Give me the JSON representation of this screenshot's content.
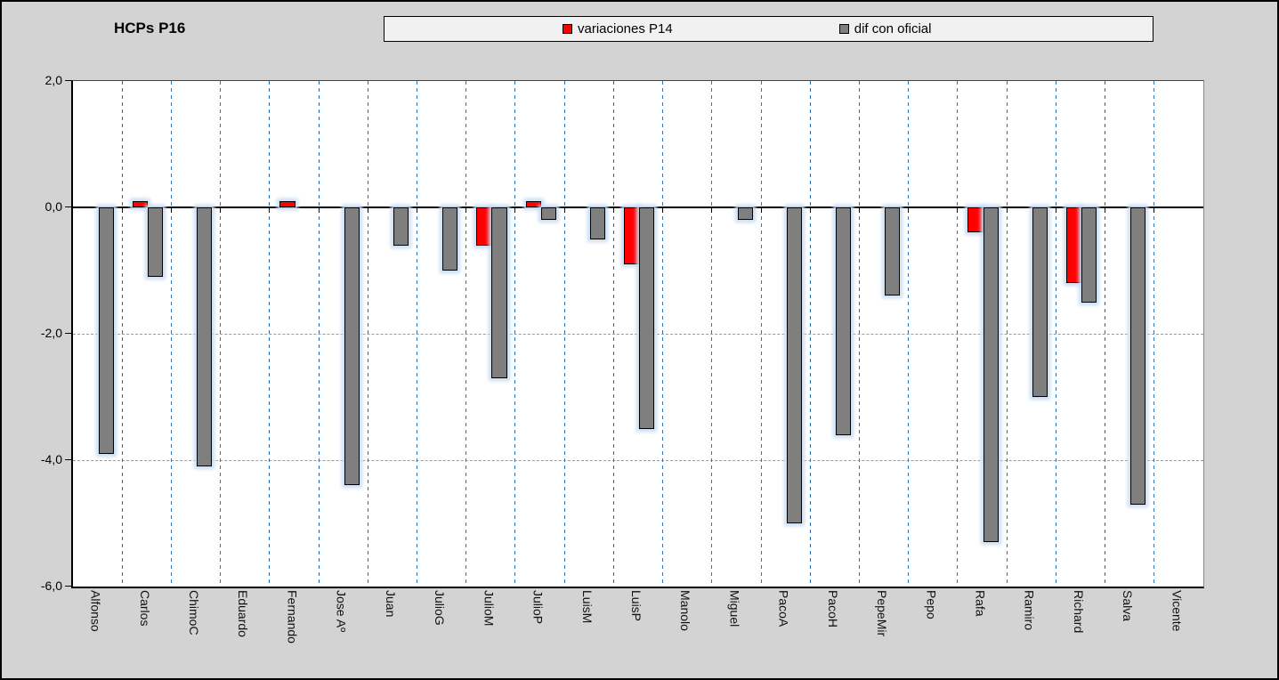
{
  "title": "HCPs P16",
  "legend": {
    "entries": [
      {
        "label": "variaciones P14",
        "color": "#fe0000"
      },
      {
        "label": "dif con oficial",
        "color": "#7f7f7f"
      }
    ]
  },
  "y_axis": {
    "tick_labels": [
      "2,0",
      "0,0",
      "-2,0",
      "-4,0",
      "-6,0"
    ],
    "tick_values": [
      2,
      0,
      -2,
      -4,
      -6
    ]
  },
  "colors": {
    "background": "#d3d3d3",
    "plot_background": "#ffffff",
    "series_red": "#fe0000",
    "series_gray": "#7f7f7f",
    "bar_border": "#000000",
    "bar_glow": "#c9dcf2",
    "category_separator_blue": "#2e75b6",
    "gridline_gray": "#9a9a9a",
    "legend_background": "#f1f1f1"
  },
  "chart_data": {
    "type": "bar",
    "title": "HCPs P16",
    "categories": [
      "Alfonso",
      "Carlos",
      "ChimoC",
      "Eduardo",
      "Fernando",
      "Jose Aº",
      "Juan",
      "JulioG",
      "JulioM",
      "JulioP",
      "LuisM",
      "LuisP",
      "Manolo",
      "Miguel",
      "PacoA",
      "PacoH",
      "PepeMir",
      "Pepo",
      "Rafa",
      "Ramiro",
      "Richard",
      "Salva",
      "Vicente"
    ],
    "series": [
      {
        "name": "variaciones P14",
        "color": "#fe0000",
        "values": [
          null,
          0.1,
          null,
          null,
          0.1,
          null,
          null,
          null,
          -0.6,
          0.1,
          null,
          -0.9,
          null,
          null,
          null,
          null,
          null,
          null,
          -0.4,
          null,
          -1.2,
          null,
          null
        ]
      },
      {
        "name": "dif con oficial",
        "color": "#7f7f7f",
        "values": [
          -3.9,
          -1.1,
          -4.1,
          null,
          null,
          -4.4,
          -0.6,
          -1.0,
          -2.7,
          -0.2,
          -0.5,
          -3.5,
          null,
          -0.2,
          -5.0,
          -3.6,
          -1.4,
          null,
          -5.3,
          -3.0,
          -1.5,
          -4.7,
          null
        ]
      }
    ],
    "ylim": [
      -6,
      2
    ],
    "xlabel": "",
    "ylabel": "",
    "grid": "horizontal-dashed and vertical category separators",
    "legend_position": "top"
  }
}
